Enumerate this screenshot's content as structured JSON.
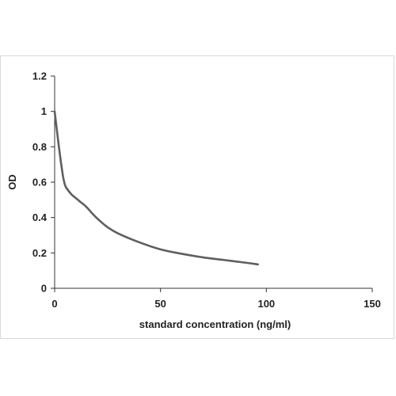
{
  "chart_data": {
    "type": "line",
    "title": "",
    "xlabel": "standard concentration (ng/ml)",
    "ylabel": "OD",
    "xlim": [
      0,
      150
    ],
    "ylim": [
      0,
      1.2
    ],
    "x_ticks": [
      0,
      50,
      100,
      150
    ],
    "y_ticks": [
      0,
      0.2,
      0.4,
      0.6,
      0.8,
      1,
      1.2
    ],
    "x_tick_labels": [
      "0",
      "50",
      "100",
      "150"
    ],
    "y_tick_labels": [
      "0",
      "0.2",
      "0.4",
      "0.6",
      "0.8",
      "1",
      "1.2"
    ],
    "grid": false,
    "legend": "none",
    "series": [
      {
        "color": "#5f5f5f",
        "x": [
          0,
          1,
          2,
          3,
          4,
          5,
          6,
          8,
          10,
          12,
          15,
          18,
          21,
          25,
          30,
          40,
          50,
          60,
          70,
          80,
          90,
          96
        ],
        "y": [
          1.0,
          0.9,
          0.8,
          0.71,
          0.63,
          0.58,
          0.56,
          0.53,
          0.51,
          0.49,
          0.46,
          0.42,
          0.385,
          0.345,
          0.31,
          0.26,
          0.22,
          0.195,
          0.175,
          0.16,
          0.145,
          0.135
        ]
      }
    ]
  }
}
